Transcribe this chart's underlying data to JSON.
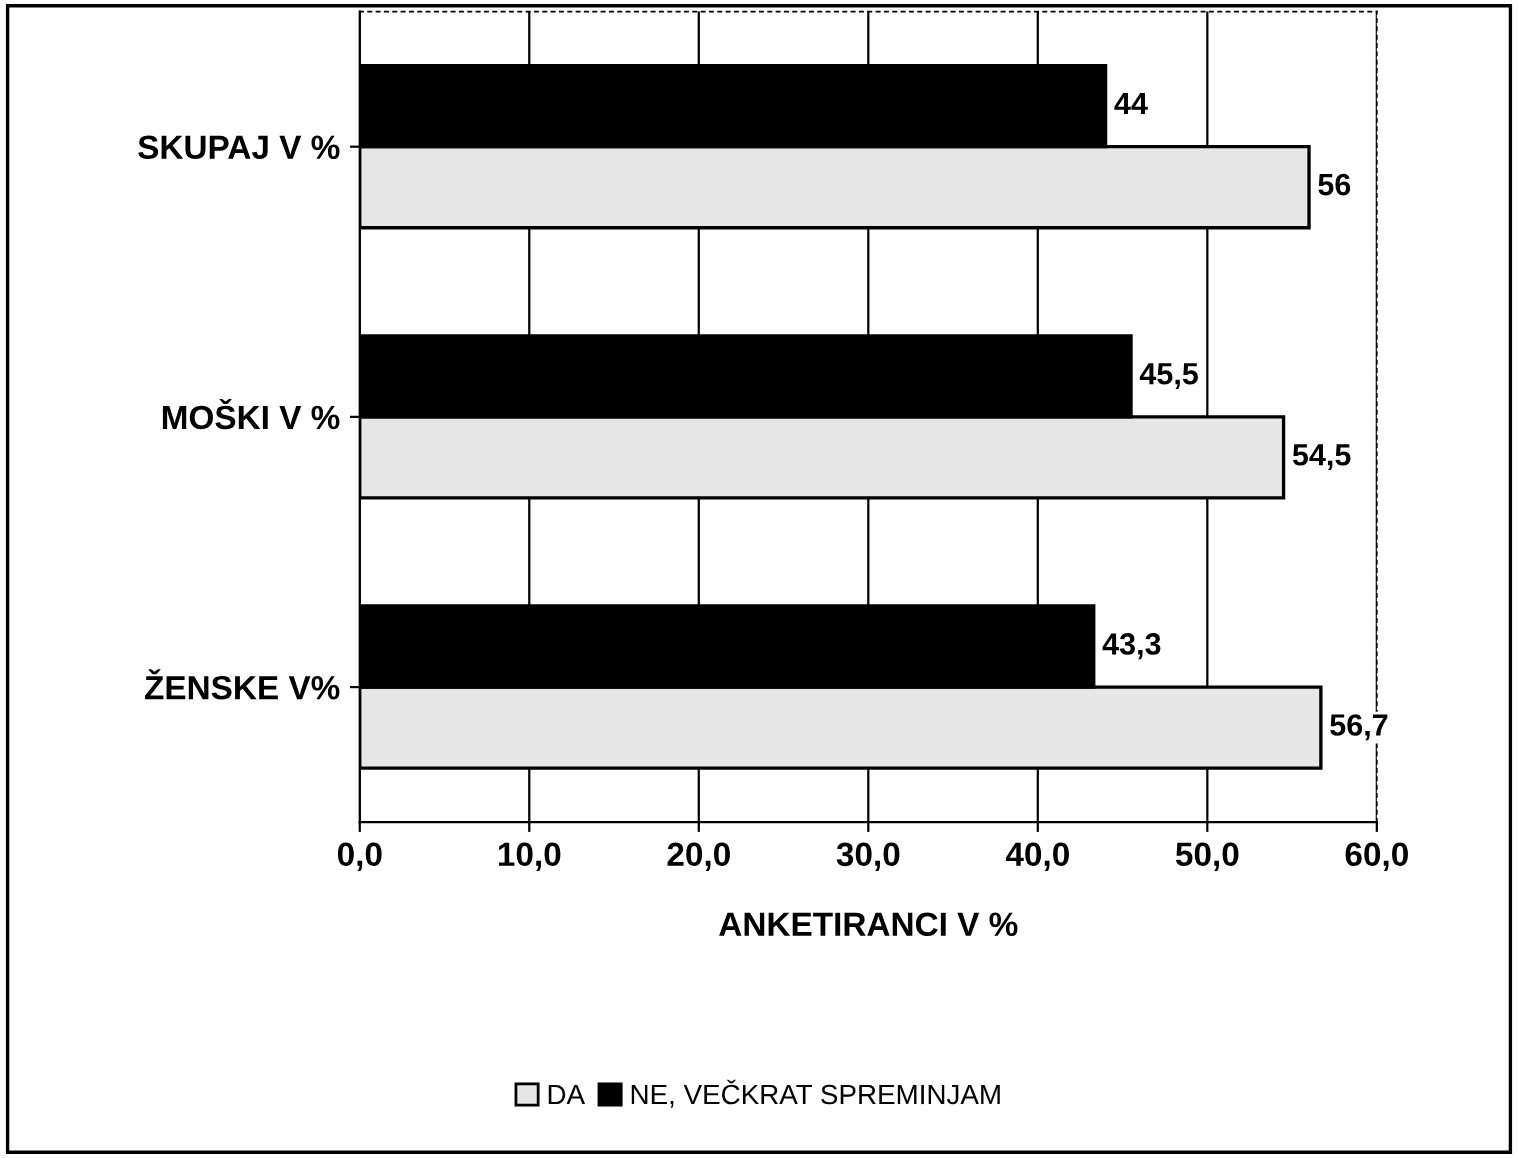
{
  "chart_data": {
    "type": "bar",
    "orientation": "horizontal",
    "xlabel": "ANKETIRANCI V %",
    "categories": [
      "SKUPAJ V %",
      "MOŠKI V %",
      "ŽENSKE V%"
    ],
    "series": [
      {
        "name": "DA",
        "color": "#e6e6e6",
        "values": [
          56,
          54.5,
          56.7
        ],
        "value_labels": [
          "56",
          "54,5",
          "56,7"
        ]
      },
      {
        "name": "NE, VEČKRAT SPREMINJAM",
        "color": "#000000",
        "values": [
          44,
          45.5,
          43.3
        ],
        "value_labels": [
          "44",
          "45,5",
          "43,3"
        ]
      }
    ],
    "xlim": [
      0,
      60
    ],
    "xticks": [
      {
        "value": 0,
        "label": "0,0"
      },
      {
        "value": 10,
        "label": "10,0"
      },
      {
        "value": 20,
        "label": "20,0"
      },
      {
        "value": 30,
        "label": "30,0"
      },
      {
        "value": 40,
        "label": "40,0"
      },
      {
        "value": 50,
        "label": "50,0"
      },
      {
        "value": 60,
        "label": "60,0"
      }
    ],
    "grid": "x",
    "legend": "bottom"
  }
}
